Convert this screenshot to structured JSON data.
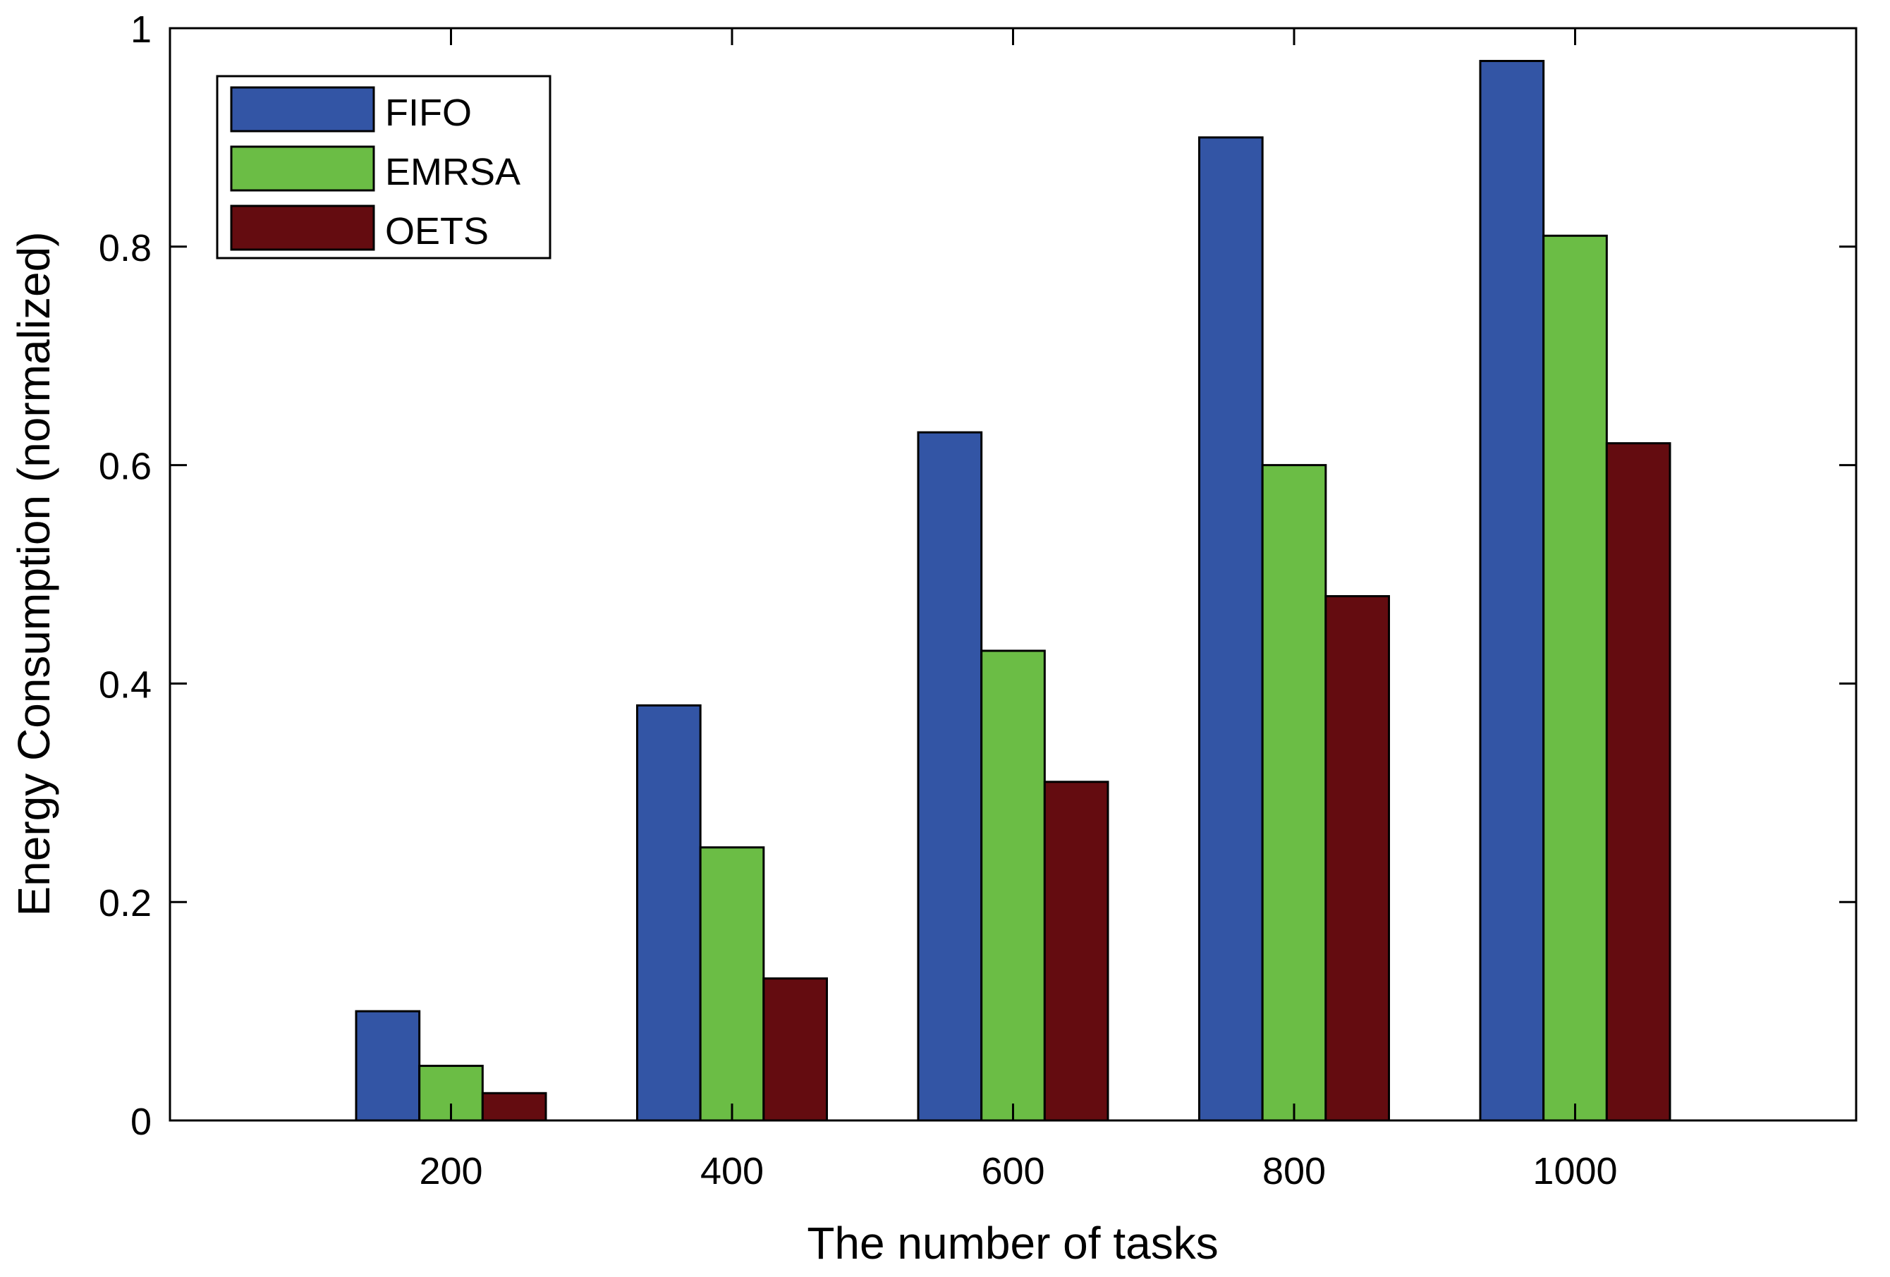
{
  "chart_data": {
    "type": "bar",
    "title": "",
    "xlabel": "The number of tasks",
    "ylabel": "Energy Consumption (normalized)",
    "categories": [
      "200",
      "400",
      "600",
      "800",
      "1000"
    ],
    "ylim": [
      0,
      1
    ],
    "yticks": [
      "0",
      "0.2",
      "0.4",
      "0.6",
      "0.8",
      "1"
    ],
    "grid": false,
    "legend_position": "top-left",
    "series": [
      {
        "name": "FIFO",
        "color": "#3355a5",
        "values": [
          0.1,
          0.38,
          0.63,
          0.9,
          0.97
        ]
      },
      {
        "name": "EMRSA",
        "color": "#6bbd45",
        "values": [
          0.05,
          0.25,
          0.43,
          0.6,
          0.81
        ]
      },
      {
        "name": "OETS",
        "color": "#640c10",
        "values": [
          0.025,
          0.13,
          0.31,
          0.48,
          0.62
        ]
      }
    ]
  }
}
